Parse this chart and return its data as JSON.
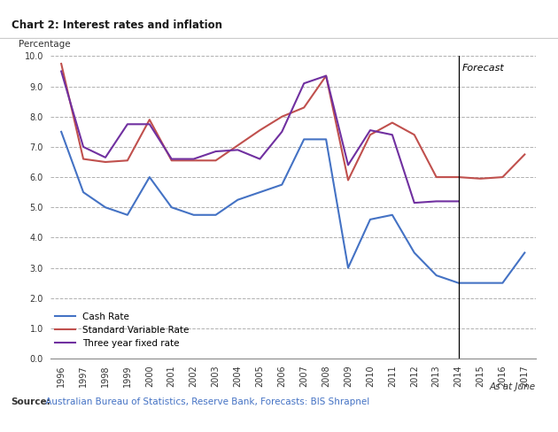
{
  "title": "Chart 2: Interest rates and inflation",
  "ylabel": "Percentage",
  "xlabel_note": "As at June",
  "source_bold": "Source:",
  "source_rest": " Australian Bureau of Statistics, Reserve Bank, Forecasts: BIS Shrapnel",
  "forecast_year": 2014,
  "years": [
    1996,
    1997,
    1998,
    1999,
    2000,
    2001,
    2002,
    2003,
    2004,
    2005,
    2006,
    2007,
    2008,
    2009,
    2010,
    2011,
    2012,
    2013,
    2014,
    2015,
    2016,
    2017
  ],
  "cash_rate": [
    7.5,
    5.5,
    5.0,
    4.75,
    6.0,
    5.0,
    4.75,
    4.75,
    5.25,
    5.5,
    5.75,
    7.25,
    7.25,
    3.0,
    4.6,
    4.75,
    3.5,
    2.75,
    2.5,
    2.5,
    2.5,
    3.5
  ],
  "standard_variable": [
    9.75,
    6.6,
    6.5,
    6.55,
    7.9,
    6.55,
    6.55,
    6.55,
    7.05,
    7.55,
    8.0,
    8.3,
    9.35,
    5.9,
    7.4,
    7.8,
    7.4,
    6.0,
    6.0,
    5.95,
    6.0,
    6.75
  ],
  "three_year_fixed": [
    9.5,
    7.0,
    6.65,
    7.75,
    7.75,
    6.6,
    6.6,
    6.85,
    6.9,
    6.6,
    7.5,
    9.1,
    9.35,
    6.4,
    7.55,
    7.4,
    5.15,
    5.2,
    5.2,
    null,
    null,
    null
  ],
  "cash_color": "#4472C4",
  "svr_color": "#C0504D",
  "fixed_color": "#7030A0",
  "ylim": [
    0.0,
    10.0
  ],
  "yticks": [
    0.0,
    1.0,
    2.0,
    3.0,
    4.0,
    5.0,
    6.0,
    7.0,
    8.0,
    9.0,
    10.0
  ],
  "forecast_label": "Forecast",
  "background_color": "#ffffff",
  "grid_color": "#b0b0b0",
  "title_color": "#1a1a1a",
  "source_color": "#4472C4"
}
